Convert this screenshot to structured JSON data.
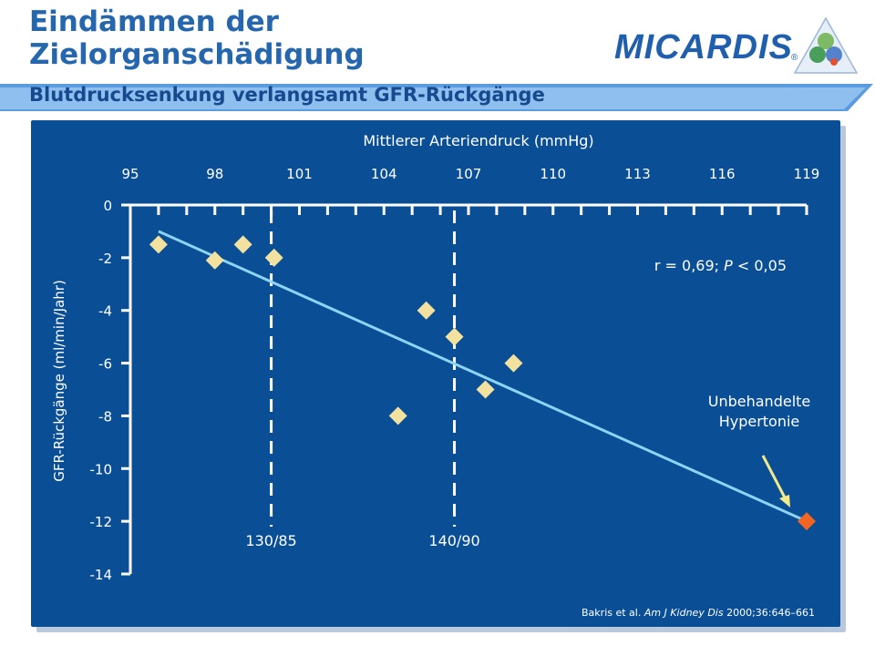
{
  "slide": {
    "title": "Eindämmen der Zielorganschädigung",
    "subtitle": "Blutdrucksenkung verlangsamt GFR-Rückgänge",
    "logo_text": "MICARDIS",
    "logo_mark": "®"
  },
  "colors": {
    "panel": "#0a4f96",
    "title": "#2467ae",
    "subtitle_bar": "#4a90d9",
    "points": "#f3e19f",
    "highlight_point": "#f26522",
    "regression_line": "#8fd3f5",
    "arrow": "#f3e98a"
  },
  "chart_data": {
    "type": "scatter",
    "title": "",
    "xlabel": "Mittlerer Arteriendruck (mmHg)",
    "ylabel": "GFR-Rückgänge (ml/min/Jahr)",
    "x_axis_position": "top",
    "xlim": [
      95,
      119
    ],
    "ylim": [
      -14,
      0
    ],
    "x_ticks": [
      95,
      98,
      101,
      104,
      107,
      110,
      113,
      116,
      119
    ],
    "y_ticks": [
      0,
      -2,
      -4,
      -6,
      -8,
      -10,
      -12,
      -14
    ],
    "series": [
      {
        "points": [
          {
            "x": 96.0,
            "y": -1.5
          },
          {
            "x": 98.0,
            "y": -2.1
          },
          {
            "x": 99.0,
            "y": -1.5
          },
          {
            "x": 100.1,
            "y": -2.0
          },
          {
            "x": 104.5,
            "y": -8.0
          },
          {
            "x": 105.5,
            "y": -4.0
          },
          {
            "x": 106.5,
            "y": -5.0
          },
          {
            "x": 107.6,
            "y": -7.0
          },
          {
            "x": 108.6,
            "y": -6.0
          }
        ]
      },
      {
        "points": [
          {
            "x": 119.0,
            "y": -12.0
          }
        ]
      }
    ],
    "regression_line": {
      "x": [
        96.0,
        119.0
      ],
      "y": [
        -1.0,
        -12.0
      ]
    },
    "reference_lines": [
      {
        "x": 100.0,
        "label": "130/85"
      },
      {
        "x": 106.5,
        "label": "140/90"
      }
    ],
    "annotations": [
      {
        "text": "r = 0,69; P < 0,05"
      },
      {
        "text_line1": "Unbehandelte",
        "text_line2": "Hypertonie",
        "target": {
          "x": 119.0,
          "y": -12.0
        }
      }
    ],
    "stat": {
      "prefix": "r = 0,69; ",
      "p": "P",
      "suffix": " < 0,05"
    },
    "source": {
      "prefix": "Bakris et al. ",
      "journal": "Am J Kidney Dis",
      "suffix": " 2000;36:646–661"
    },
    "grid": false,
    "legend": "none"
  }
}
